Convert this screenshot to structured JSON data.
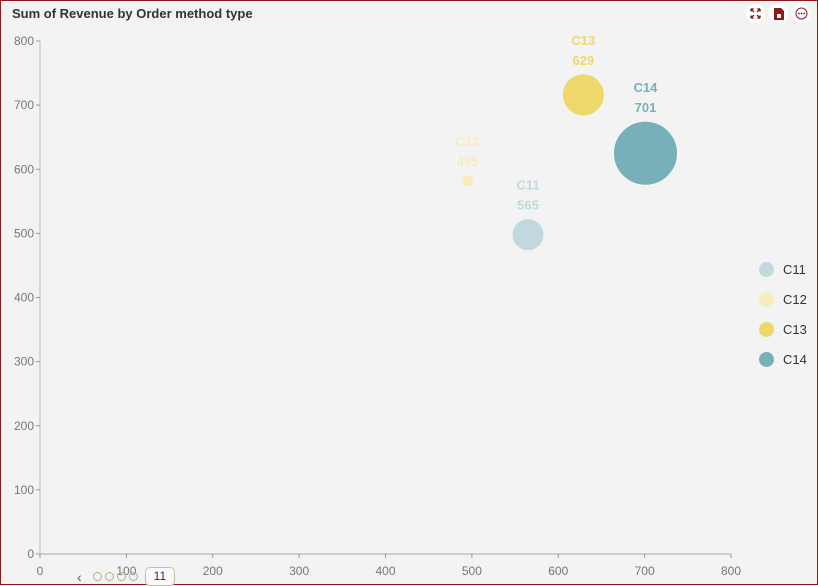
{
  "header": {
    "title": "Sum of Revenue by Order method type",
    "tools": [
      {
        "name": "expand-icon",
        "label": "Expand"
      },
      {
        "name": "export-icon",
        "label": "Export"
      },
      {
        "name": "more-icon",
        "label": "More"
      }
    ]
  },
  "colors": {
    "C11": "#c1d8de",
    "C12": "#f8ebbd",
    "C13": "#efd86a",
    "C14": "#78b0ba",
    "frame": "#8b1a1a"
  },
  "chart_data": {
    "type": "scatter",
    "subtype": "bubble",
    "title": "Sum of Revenue by Order method type",
    "xlabel": "",
    "ylabel": "",
    "xlim": [
      0,
      800
    ],
    "ylim": [
      0,
      800
    ],
    "x_ticks": [
      "0",
      "100",
      "200",
      "300",
      "400",
      "500",
      "600",
      "700",
      "800"
    ],
    "y_ticks": [
      "0",
      "100",
      "200",
      "300",
      "400",
      "500",
      "600",
      "700",
      "800"
    ],
    "grid": false,
    "legend_position": "right",
    "series": [
      {
        "name": "C11",
        "x": 565,
        "y": 498,
        "size_label": "565",
        "radius": 15,
        "color": "#c1d8de"
      },
      {
        "name": "C12",
        "x": 495,
        "y": 582,
        "size_label": "495",
        "radius": 5,
        "color": "#f8ebbd"
      },
      {
        "name": "C13",
        "x": 629,
        "y": 716,
        "size_label": "629",
        "radius": 20,
        "color": "#efd86a"
      },
      {
        "name": "C14",
        "x": 701,
        "y": 625,
        "size_label": "701",
        "radius": 31,
        "color": "#78b0ba"
      }
    ]
  },
  "legend": {
    "items": [
      {
        "label": "C11",
        "color": "#c1d8de"
      },
      {
        "label": "C12",
        "color": "#f8ebbd"
      },
      {
        "label": "C13",
        "color": "#efd86a"
      },
      {
        "label": "C14",
        "color": "#78b0ba"
      }
    ]
  },
  "pager": {
    "prev_icon": "‹",
    "dots": 4,
    "current_page": "11"
  }
}
